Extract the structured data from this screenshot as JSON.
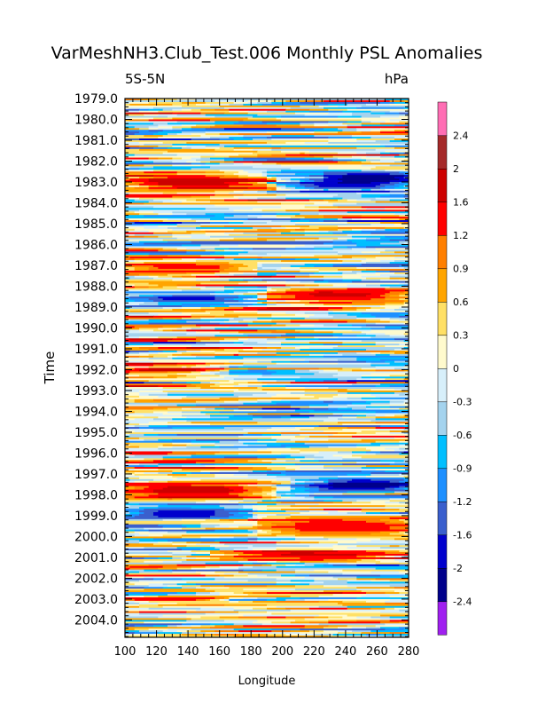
{
  "chart_data": {
    "type": "heatmap",
    "title": "VarMeshNH3.Club_Test.006 Monthly PSL Anomalies",
    "subtitle_left": "5S-5N",
    "subtitle_right": "hPa",
    "xlabel": "Longitude",
    "ylabel": "Time",
    "xlim": [
      100,
      280
    ],
    "ylim": [
      1979.0,
      2004.833
    ],
    "x_ticks": [
      "100",
      "120",
      "140",
      "160",
      "180",
      "200",
      "220",
      "240",
      "260",
      "280"
    ],
    "y_ticks": [
      "1979.0",
      "1980.0",
      "1981.0",
      "1982.0",
      "1983.0",
      "1984.0",
      "1985.0",
      "1986.0",
      "1987.0",
      "1988.0",
      "1989.0",
      "1990.0",
      "1991.0",
      "1992.0",
      "1993.0",
      "1994.0",
      "1995.0",
      "1996.0",
      "1997.0",
      "1998.0",
      "1999.0",
      "2000.0",
      "2001.0",
      "2002.0",
      "2003.0",
      "2004.0"
    ],
    "colorbar": {
      "labels": [
        "2.4",
        "2",
        "1.6",
        "1.2",
        "0.9",
        "0.6",
        "0.3",
        "0",
        "-0.3",
        "-0.6",
        "-0.9",
        "-1.2",
        "-1.6",
        "-2",
        "-2.4"
      ],
      "levels": [
        -2.4,
        -2,
        -1.6,
        -1.2,
        -0.9,
        -0.6,
        -0.3,
        0,
        0.3,
        0.6,
        0.9,
        1.2,
        1.6,
        2,
        2.4
      ],
      "colors": [
        "#a020f0",
        "#00008b",
        "#0000cd",
        "#3a5fcd",
        "#1e90ff",
        "#00bfff",
        "#a4d3ee",
        "#d7effa",
        "#fffacd",
        "#ffe066",
        "#ffa500",
        "#ff7f00",
        "#ff0000",
        "#cd0000",
        "#a52a2a",
        "#ff6eb4"
      ]
    },
    "features": [
      {
        "t": 1983.0,
        "lon": 100,
        "span": 85,
        "w": 0.4,
        "v": 1.9
      },
      {
        "t": 1983.1,
        "lon": 200,
        "span": 80,
        "w": 0.4,
        "v": -1.9
      },
      {
        "t": 1982.8,
        "lon": 230,
        "span": 50,
        "w": 0.25,
        "v": -2.3
      },
      {
        "t": 1987.1,
        "lon": 100,
        "span": 80,
        "w": 0.3,
        "v": 1.4
      },
      {
        "t": 1988.6,
        "lon": 100,
        "span": 80,
        "w": 0.25,
        "v": -1.7
      },
      {
        "t": 1988.4,
        "lon": 195,
        "span": 85,
        "w": 0.35,
        "v": 1.7
      },
      {
        "t": 1985.9,
        "lon": 100,
        "span": 180,
        "w": 0.1,
        "v": -1.7
      },
      {
        "t": 1992.0,
        "lon": 100,
        "span": 60,
        "w": 0.15,
        "v": 1.9
      },
      {
        "t": 1997.8,
        "lon": 100,
        "span": 90,
        "w": 0.4,
        "v": 1.9
      },
      {
        "t": 1997.6,
        "lon": 210,
        "span": 70,
        "w": 0.3,
        "v": -1.9
      },
      {
        "t": 1997.5,
        "lon": 235,
        "span": 40,
        "w": 0.2,
        "v": -2.3
      },
      {
        "t": 1998.9,
        "lon": 100,
        "span": 75,
        "w": 0.3,
        "v": -1.9
      },
      {
        "t": 1999.5,
        "lon": 190,
        "span": 90,
        "w": 0.6,
        "v": 1.4
      },
      {
        "t": 2000.9,
        "lon": 160,
        "span": 120,
        "w": 0.15,
        "v": 1.7
      },
      {
        "t": 2003.0,
        "lon": 100,
        "span": 60,
        "w": 0.15,
        "v": 1.6
      }
    ]
  }
}
